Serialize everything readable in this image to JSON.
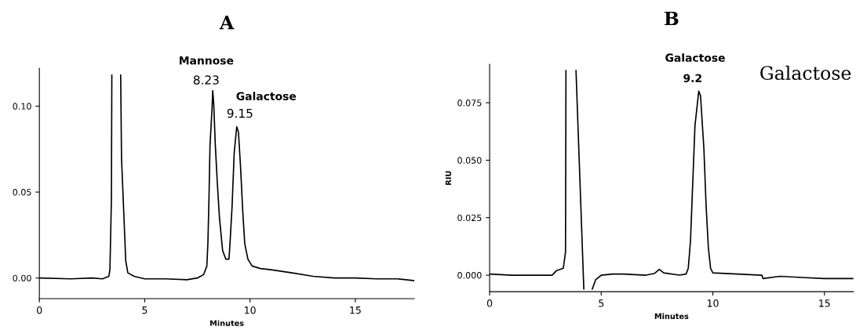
{
  "chart_data": [
    {
      "type": "line",
      "title": "A",
      "xlabel": "Minutes",
      "xlim": [
        0,
        17.8
      ],
      "ylim": [
        -0.012,
        0.122
      ],
      "xticks": [
        0,
        5,
        10,
        15
      ],
      "yticks": [
        {
          "value": 0,
          "label": "0.00"
        },
        {
          "value": 0.05,
          "label": "0.05"
        },
        {
          "value": 0.1,
          "label": "0.10"
        }
      ],
      "grid": false,
      "marker": "none",
      "line_style": "solid",
      "series": [
        {
          "color": "#000000",
          "x": [
            0,
            1.5,
            2.5,
            3.0,
            3.3,
            3.35,
            3.42,
            3.44,
            3.65,
            3.86,
            3.9,
            4.0,
            4.1,
            4.2,
            4.5,
            5,
            6,
            7,
            7.5,
            7.8,
            7.95,
            8.0,
            8.05,
            8.1,
            8.2,
            8.23,
            8.28,
            8.35,
            8.45,
            8.55,
            8.7,
            8.85,
            9.0,
            9.05,
            9.15,
            9.25,
            9.37,
            9.45,
            9.55,
            9.65,
            9.75,
            9.9,
            10.1,
            10.5,
            11,
            12,
            13,
            14,
            15,
            16,
            17,
            17.8
          ],
          "values": [
            0.0,
            -0.0005,
            0.0,
            -0.0005,
            0.001,
            0.005,
            0.046,
            0.118,
            null,
            0.118,
            0.07,
            0.04,
            0.01,
            0.003,
            0.001,
            -0.0005,
            -0.0005,
            -0.001,
            0.0,
            0.002,
            0.007,
            0.02,
            0.045,
            0.077,
            0.099,
            0.109,
            0.101,
            0.078,
            0.055,
            0.035,
            0.016,
            0.011,
            0.011,
            0.02,
            0.042,
            0.073,
            0.088,
            0.085,
            0.065,
            0.04,
            0.02,
            0.011,
            0.007,
            0.0055,
            0.0048,
            0.003,
            0.001,
            0.0,
            0.0,
            -0.0005,
            -0.0005,
            -0.0015
          ]
        }
      ],
      "annotations": [
        "Mannose",
        "8.23",
        "Galactose",
        "9.15"
      ]
    },
    {
      "type": "line",
      "title": "B",
      "xlabel": "Minutes",
      "ylabel": "RIU",
      "xlim": [
        0,
        16.3
      ],
      "ylim": [
        -0.0072,
        0.0917
      ],
      "xticks": [
        0,
        5,
        10,
        15
      ],
      "yticks": [
        {
          "value": 0,
          "label": "0.000"
        },
        {
          "value": 0.025,
          "label": "0.025"
        },
        {
          "value": 0.05,
          "label": "0.050"
        },
        {
          "value": 0.075,
          "label": "0.075"
        }
      ],
      "grid": false,
      "marker": "none",
      "line_style": "solid",
      "series": [
        {
          "color": "#000000",
          "x": [
            0,
            1,
            2.8,
            3.0,
            3.3,
            3.4,
            3.42,
            3.65,
            3.87,
            4.22,
            4.4,
            4.6,
            4.75,
            5.0,
            5.5,
            6,
            7,
            7.4,
            7.6,
            7.8,
            8.5,
            8.8,
            8.9,
            9.0,
            9.1,
            9.2,
            9.37,
            9.45,
            9.6,
            9.7,
            9.8,
            9.9,
            10,
            12.2,
            12.25,
            13,
            14,
            15,
            16.3
          ],
          "values": [
            0.0005,
            0.0,
            0.0,
            0.002,
            0.003,
            0.01,
            0.089,
            null,
            0.089,
            -0.006,
            null,
            -0.006,
            -0.002,
            0.0,
            0.0005,
            0.0005,
            0.0,
            0.0008,
            0.0025,
            0.001,
            0.0,
            0.0005,
            0.003,
            0.015,
            0.04,
            0.065,
            0.08,
            0.078,
            0.055,
            0.03,
            0.012,
            0.003,
            0.001,
            0.0,
            -0.0015,
            -0.0005,
            -0.001,
            -0.0015,
            -0.0015
          ]
        }
      ],
      "annotations": [
        "Galactose",
        "9.2",
        "Galactose"
      ]
    }
  ]
}
